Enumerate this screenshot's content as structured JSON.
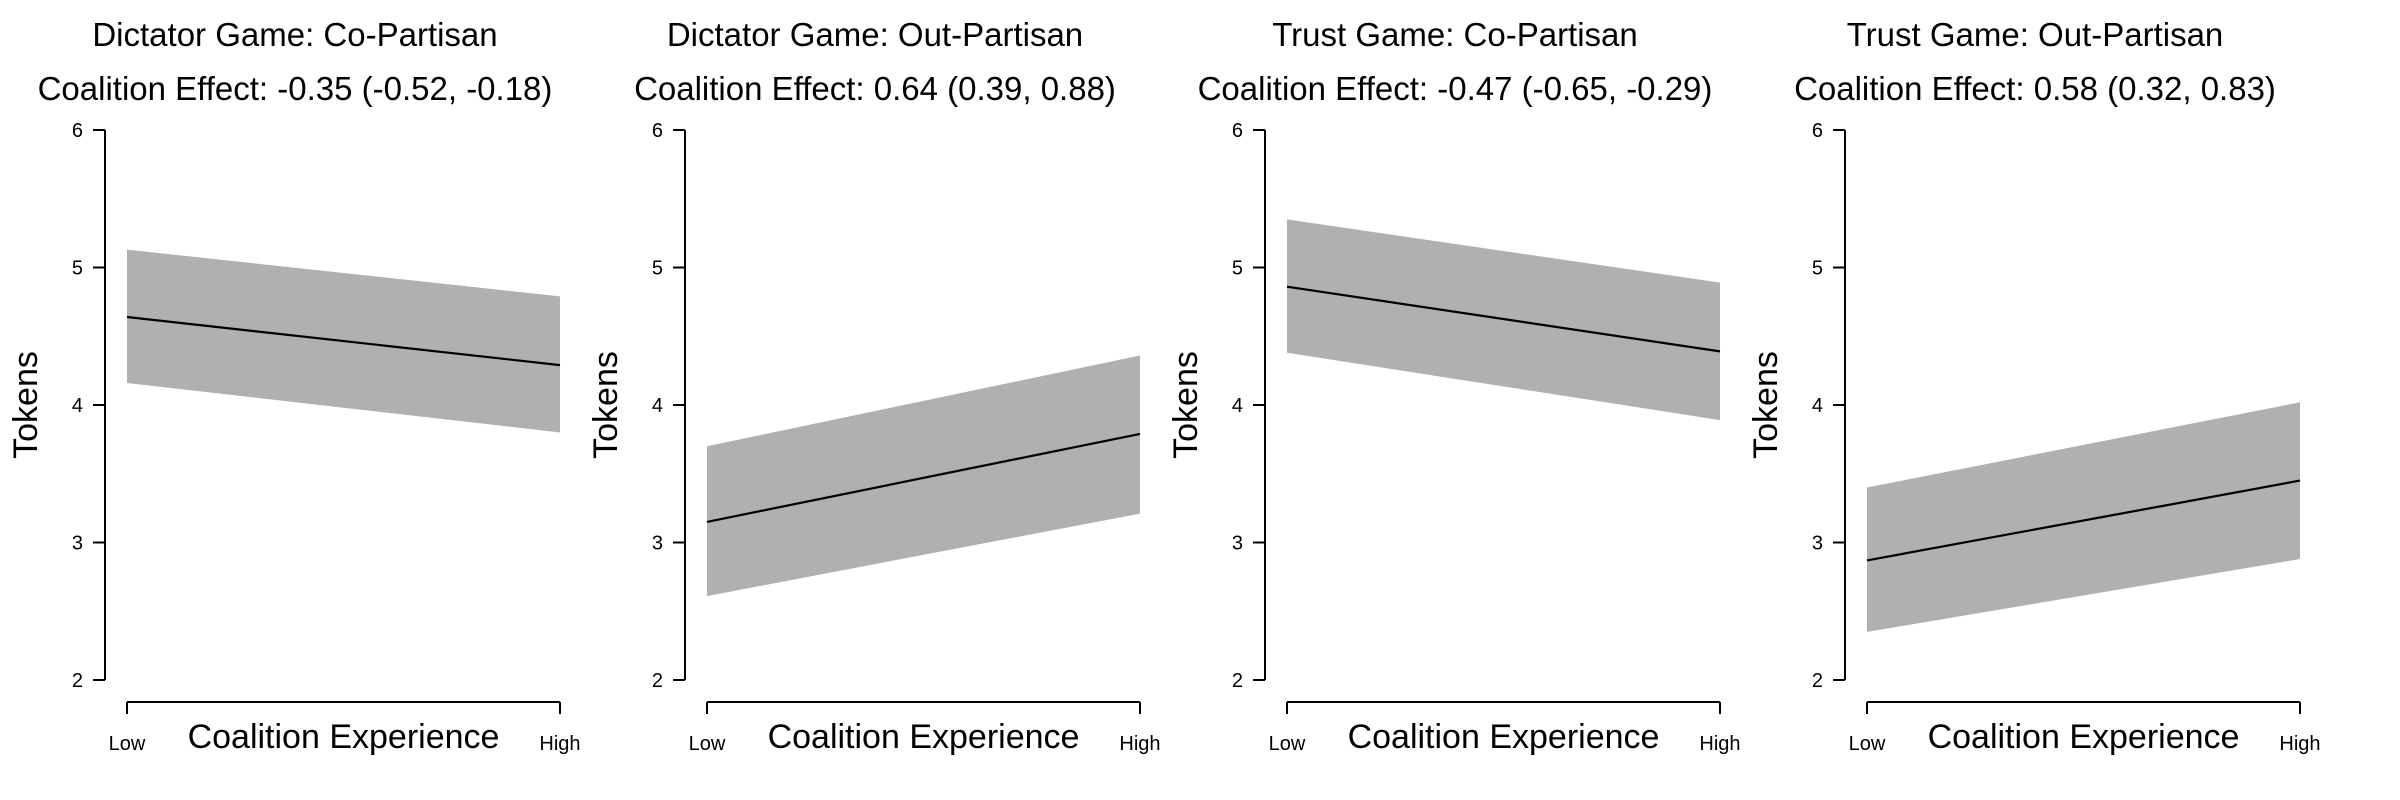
{
  "chart_data": [
    {
      "type": "line",
      "title": "Dictator Game: Co-Partisan",
      "subtitle": "Coalition Effect: -0.35 (-0.52, -0.18)",
      "xlabel": "Coalition Experience",
      "ylabel": "Tokens",
      "x_ticks": [
        "Low",
        "High"
      ],
      "ylim": [
        2,
        6
      ],
      "y_ticks": [
        2,
        3,
        4,
        5,
        6
      ],
      "grid": false,
      "series": [
        {
          "x": [
            "Low",
            "High"
          ],
          "y": [
            4.64,
            4.29
          ],
          "lower": [
            4.16,
            3.8
          ],
          "upper": [
            5.13,
            4.79
          ]
        }
      ]
    },
    {
      "type": "line",
      "title": "Dictator Game: Out-Partisan",
      "subtitle": "Coalition Effect: 0.64 (0.39, 0.88)",
      "xlabel": "Coalition Experience",
      "ylabel": "Tokens",
      "x_ticks": [
        "Low",
        "High"
      ],
      "ylim": [
        2,
        6
      ],
      "y_ticks": [
        2,
        3,
        4,
        5,
        6
      ],
      "grid": false,
      "series": [
        {
          "x": [
            "Low",
            "High"
          ],
          "y": [
            3.15,
            3.79
          ],
          "lower": [
            2.61,
            3.21
          ],
          "upper": [
            3.7,
            4.36
          ]
        }
      ]
    },
    {
      "type": "line",
      "title": "Trust Game: Co-Partisan",
      "subtitle": "Coalition Effect: -0.47 (-0.65, -0.29)",
      "xlabel": "Coalition Experience",
      "ylabel": "Tokens",
      "x_ticks": [
        "Low",
        "High"
      ],
      "ylim": [
        2,
        6
      ],
      "y_ticks": [
        2,
        3,
        4,
        5,
        6
      ],
      "grid": false,
      "series": [
        {
          "x": [
            "Low",
            "High"
          ],
          "y": [
            4.86,
            4.39
          ],
          "lower": [
            4.38,
            3.89
          ],
          "upper": [
            5.35,
            4.89
          ]
        }
      ]
    },
    {
      "type": "line",
      "title": "Trust Game: Out-Partisan",
      "subtitle": "Coalition Effect: 0.58 (0.32, 0.83)",
      "xlabel": "Coalition Experience",
      "ylabel": "Tokens",
      "x_ticks": [
        "Low",
        "High"
      ],
      "ylim": [
        2,
        6
      ],
      "y_ticks": [
        2,
        3,
        4,
        5,
        6
      ],
      "grid": false,
      "series": [
        {
          "x": [
            "Low",
            "High"
          ],
          "y": [
            2.87,
            3.45
          ],
          "lower": [
            2.35,
            2.88
          ],
          "upper": [
            3.4,
            4.02
          ]
        }
      ]
    }
  ]
}
